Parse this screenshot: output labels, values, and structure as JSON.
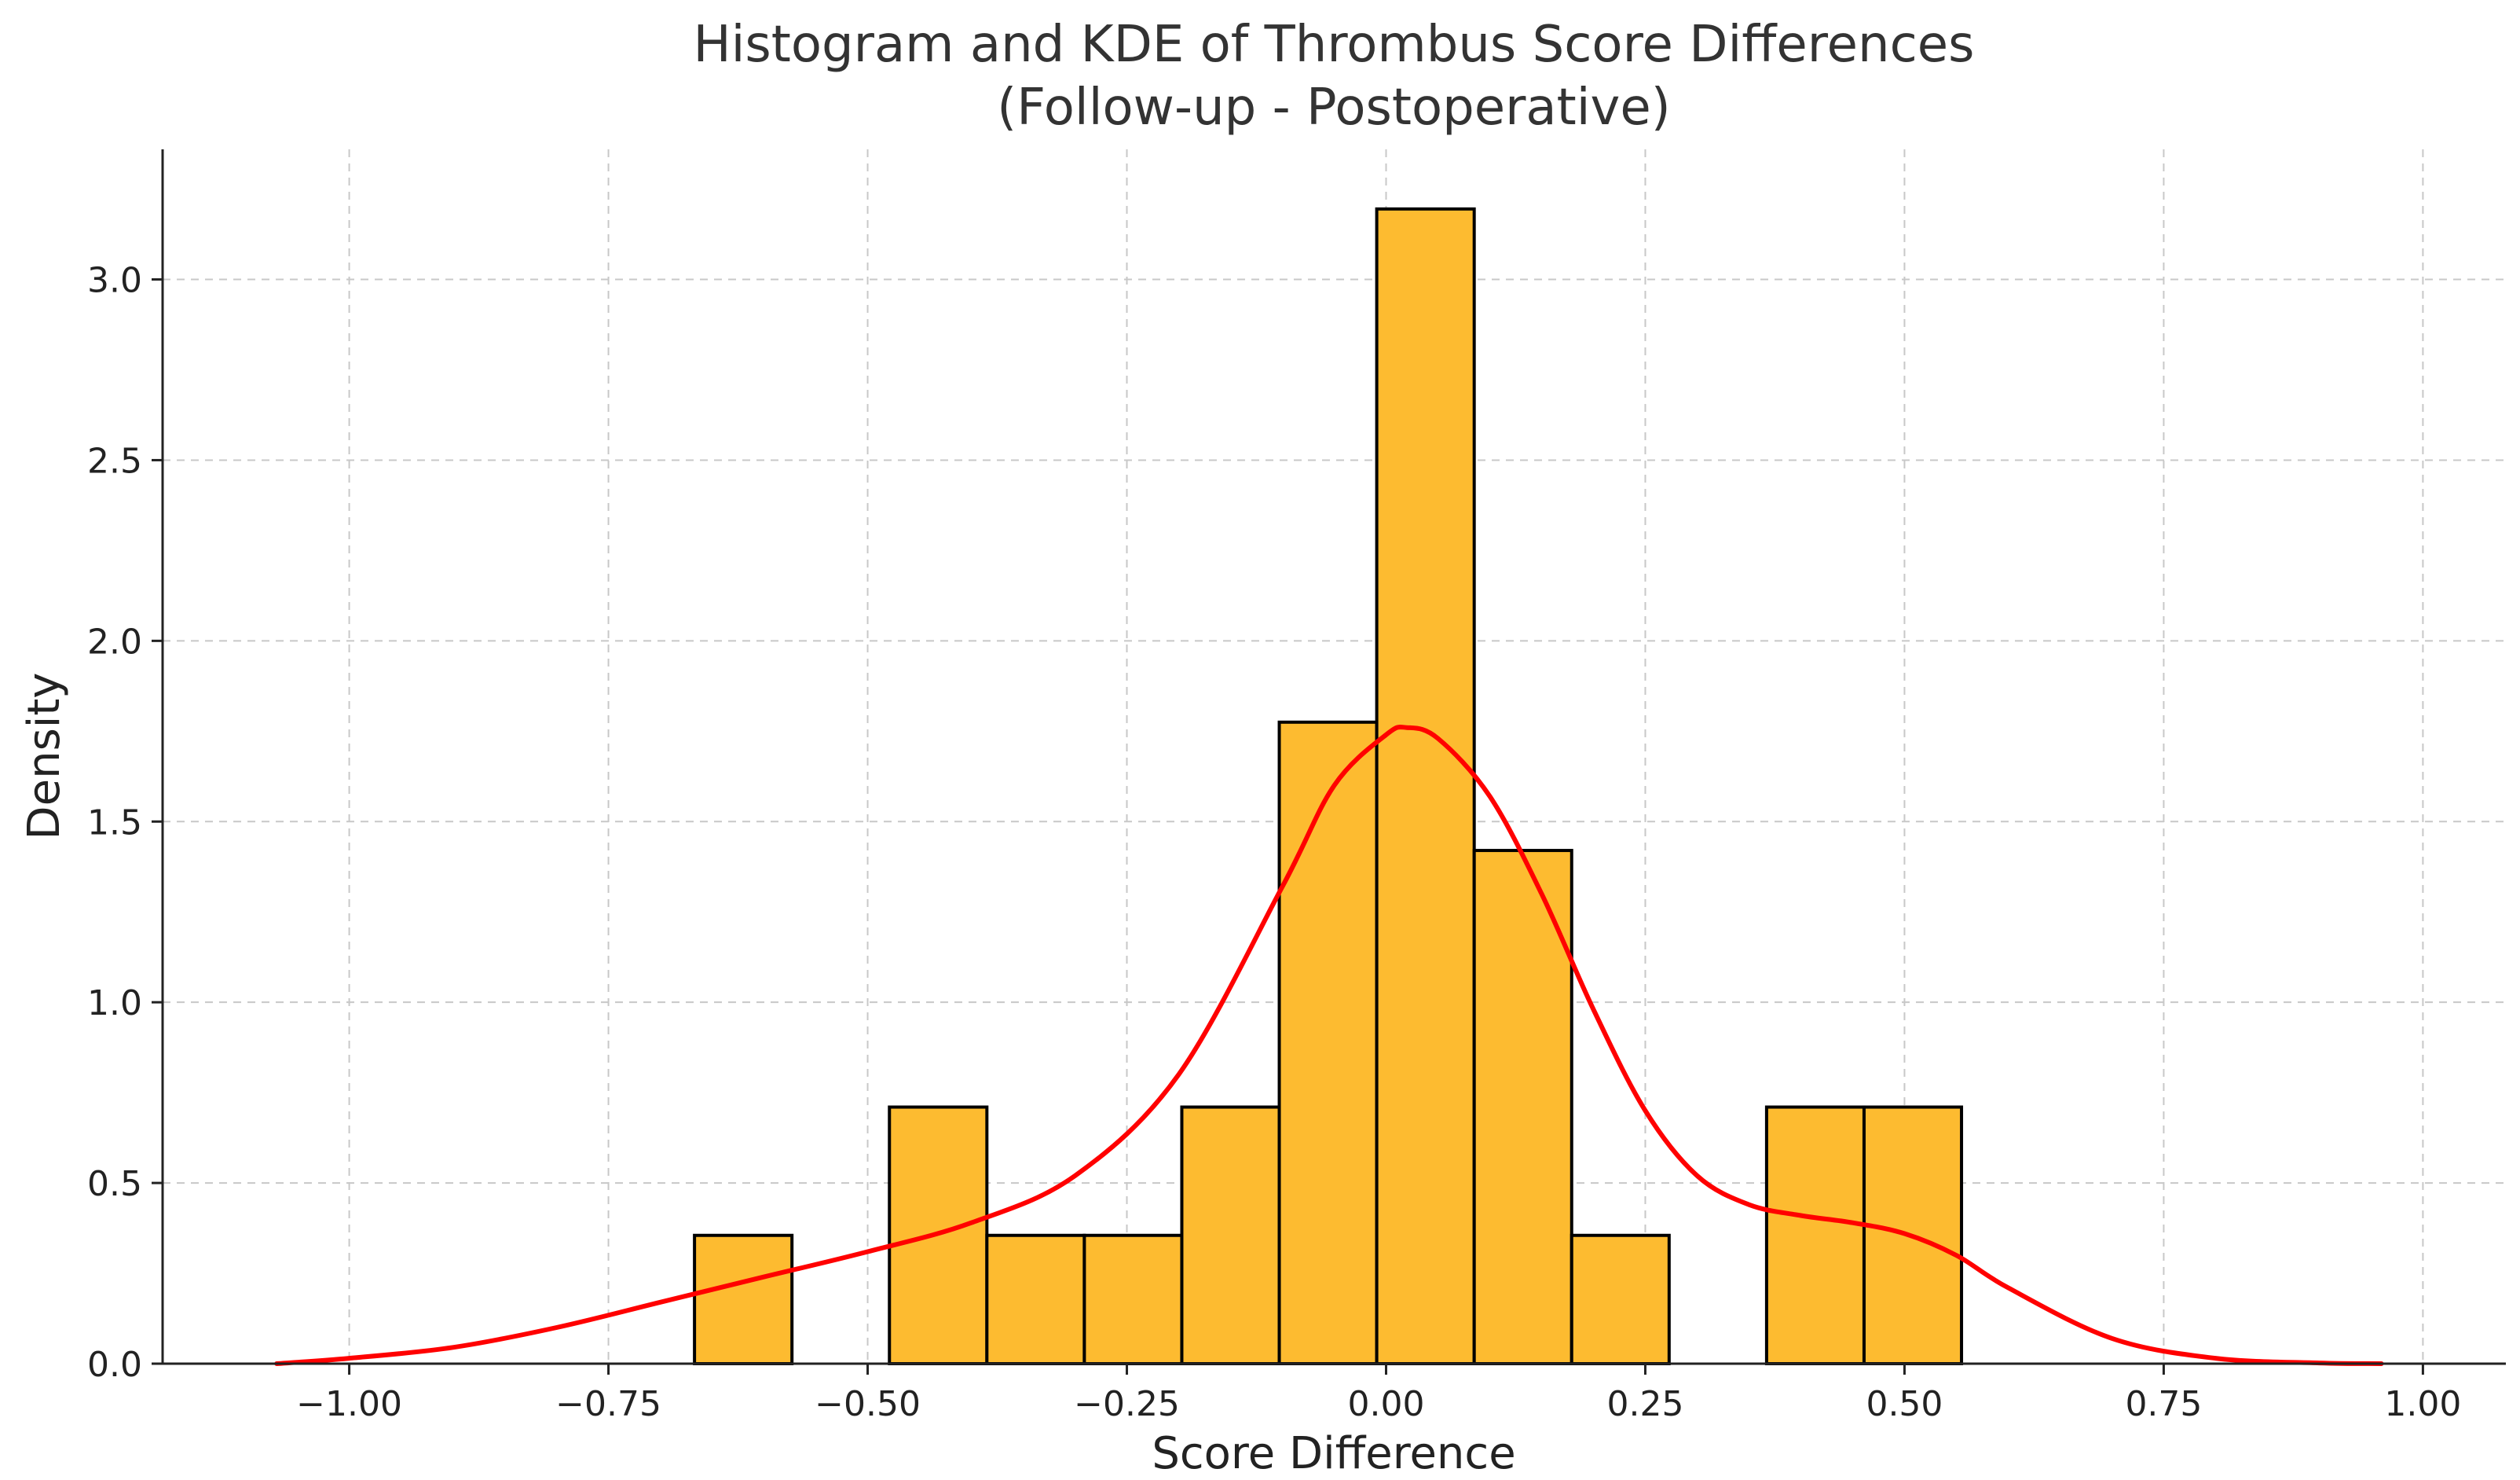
{
  "chart_data": {
    "type": "histogram",
    "title": [
      "Histogram and KDE of Thrombus Score Differences",
      "(Follow-up - Postoperative)"
    ],
    "xlabel": "Score Difference",
    "ylabel": "Density",
    "xlim": [
      -1.18,
      1.08
    ],
    "ylim": [
      0,
      3.36
    ],
    "xticks": [
      -1.0,
      -0.75,
      -0.5,
      -0.25,
      0.0,
      0.25,
      0.5,
      0.75,
      1.0
    ],
    "xtick_labels": [
      "−1.00",
      "−0.75",
      "−0.50",
      "−0.25",
      "0.00",
      "0.25",
      "0.50",
      "0.75",
      "1.00"
    ],
    "yticks": [
      0.0,
      0.5,
      1.0,
      1.5,
      2.0,
      2.5,
      3.0
    ],
    "ytick_labels": [
      "0.0",
      "0.5",
      "1.0",
      "1.5",
      "2.0",
      "2.5",
      "3.0"
    ],
    "grid": true,
    "bars": [
      {
        "x0": -0.667,
        "x1": -0.573,
        "density": 0.355
      },
      {
        "x0": -0.573,
        "x1": -0.479,
        "density": 0.0
      },
      {
        "x0": -0.479,
        "x1": -0.385,
        "density": 0.71
      },
      {
        "x0": -0.385,
        "x1": -0.291,
        "density": 0.355
      },
      {
        "x0": -0.291,
        "x1": -0.197,
        "density": 0.355
      },
      {
        "x0": -0.197,
        "x1": -0.103,
        "density": 0.71
      },
      {
        "x0": -0.103,
        "x1": -0.009,
        "density": 1.775
      },
      {
        "x0": -0.009,
        "x1": 0.085,
        "density": 3.195
      },
      {
        "x0": 0.085,
        "x1": 0.179,
        "density": 1.42
      },
      {
        "x0": 0.179,
        "x1": 0.273,
        "density": 0.355
      },
      {
        "x0": 0.273,
        "x1": 0.367,
        "density": 0.0
      },
      {
        "x0": 0.367,
        "x1": 0.461,
        "density": 0.71
      },
      {
        "x0": 0.461,
        "x1": 0.555,
        "density": 0.71
      }
    ],
    "kde": {
      "name": "KDE",
      "x": [
        -1.07,
        -1.0,
        -0.9,
        -0.8,
        -0.7,
        -0.6,
        -0.5,
        -0.4,
        -0.3,
        -0.2,
        -0.1,
        -0.05,
        0.0,
        0.02,
        0.05,
        0.1,
        0.15,
        0.2,
        0.25,
        0.3,
        0.35,
        0.4,
        0.45,
        0.5,
        0.55,
        0.6,
        0.7,
        0.8,
        0.9,
        0.96
      ],
      "y": [
        0.0,
        0.015,
        0.045,
        0.1,
        0.17,
        0.24,
        0.31,
        0.39,
        0.52,
        0.8,
        1.32,
        1.6,
        1.74,
        1.76,
        1.73,
        1.57,
        1.3,
        0.98,
        0.7,
        0.52,
        0.44,
        0.41,
        0.39,
        0.36,
        0.3,
        0.21,
        0.07,
        0.015,
        0.002,
        0.0
      ]
    },
    "colors": {
      "bar_fill": "#FDBB30",
      "bar_edge": "#000000",
      "kde_line": "#FF0000"
    }
  }
}
